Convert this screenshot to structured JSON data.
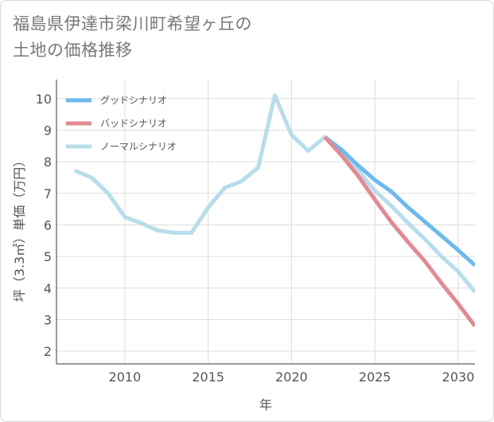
{
  "title": {
    "line1": "福島県伊達市梁川町希望ヶ丘の",
    "line2": "土地の価格推移"
  },
  "chart_data": {
    "type": "line",
    "xlabel": "年",
    "ylabel": "坪（3.3㎡）単価（万円）",
    "xlim": [
      2005.9,
      2031
    ],
    "ylim": [
      1.6,
      10.6
    ],
    "x_ticks": [
      2010,
      2015,
      2020,
      2025,
      2030
    ],
    "y_ticks": [
      2,
      3,
      4,
      5,
      6,
      7,
      8,
      9,
      10
    ],
    "grid": true,
    "legend_position": "top-left",
    "series": [
      {
        "name": "グッドシナリオ",
        "color": "#6cb9ee",
        "x": [
          2022,
          2023,
          2024,
          2025,
          2026,
          2027,
          2028,
          2029,
          2030,
          2031
        ],
        "y": [
          8.78,
          8.38,
          7.88,
          7.42,
          7.05,
          6.55,
          6.1,
          5.65,
          5.2,
          4.72
        ]
      },
      {
        "name": "バッドシナリオ",
        "color": "#e08b93",
        "x": [
          2022,
          2023,
          2024,
          2025,
          2026,
          2027,
          2028,
          2029,
          2030,
          2031
        ],
        "y": [
          8.78,
          8.2,
          7.55,
          6.8,
          6.08,
          5.45,
          4.85,
          4.15,
          3.5,
          2.8
        ]
      },
      {
        "name": "ノーマルシナリオ",
        "color": "#b8dcea",
        "x": [
          2007,
          2008,
          2009,
          2010,
          2011,
          2012,
          2013,
          2014,
          2015,
          2016,
          2017,
          2018,
          2019,
          2020,
          2021,
          2022,
          2023,
          2024,
          2025,
          2026,
          2027,
          2028,
          2029,
          2030,
          2031
        ],
        "y": [
          7.72,
          7.5,
          7.0,
          6.25,
          6.05,
          5.82,
          5.75,
          5.75,
          6.55,
          7.18,
          7.38,
          7.82,
          10.1,
          8.85,
          8.35,
          8.78,
          8.3,
          7.72,
          7.08,
          6.6,
          6.05,
          5.55,
          5.0,
          4.52,
          3.88
        ]
      }
    ]
  }
}
